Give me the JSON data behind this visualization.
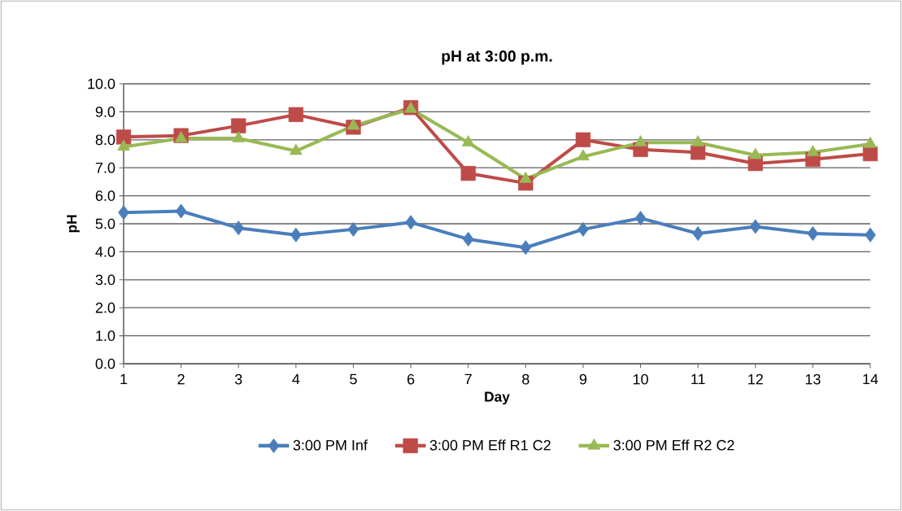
{
  "chart_data": {
    "type": "line",
    "title": "pH at 3:00 p.m.",
    "xlabel": "Day",
    "ylabel": "pH",
    "categories": [
      "1",
      "2",
      "3",
      "4",
      "5",
      "6",
      "7",
      "8",
      "9",
      "10",
      "11",
      "12",
      "13",
      "14"
    ],
    "series": [
      {
        "name": "3:00 PM Inf",
        "color": "#4a7ebb",
        "marker": "diamond",
        "values": [
          5.4,
          5.45,
          4.85,
          4.6,
          4.8,
          5.05,
          4.45,
          4.15,
          4.8,
          5.2,
          4.65,
          4.9,
          4.65,
          4.6
        ]
      },
      {
        "name": "3:00 PM Eff R1 C2",
        "color": "#be4b48",
        "marker": "square",
        "values": [
          8.1,
          8.15,
          8.5,
          8.9,
          8.45,
          9.15,
          6.8,
          6.45,
          8.0,
          7.65,
          7.55,
          7.15,
          7.3,
          7.5
        ]
      },
      {
        "name": "3:00 PM Eff R2 C2",
        "color": "#98b954",
        "marker": "triangle",
        "values": [
          7.75,
          8.05,
          8.05,
          7.6,
          8.5,
          9.1,
          7.9,
          6.6,
          7.4,
          7.9,
          7.9,
          7.45,
          7.55,
          7.85
        ]
      }
    ],
    "ylim": [
      0,
      10
    ],
    "yticks": [
      {
        "value": 0,
        "label": "0.0"
      },
      {
        "value": 1,
        "label": "1.0"
      },
      {
        "value": 2,
        "label": "2.0"
      },
      {
        "value": 3,
        "label": "3.0"
      },
      {
        "value": 4,
        "label": "4.0"
      },
      {
        "value": 5,
        "label": "5.0"
      },
      {
        "value": 6,
        "label": "6.0"
      },
      {
        "value": 7,
        "label": "7.0"
      },
      {
        "value": 8,
        "label": "8.0"
      },
      {
        "value": 9,
        "label": "9.0"
      },
      {
        "value": 10,
        "label": "10.0"
      }
    ],
    "grid": "y",
    "legend": "bottom",
    "line_style": "solid"
  }
}
